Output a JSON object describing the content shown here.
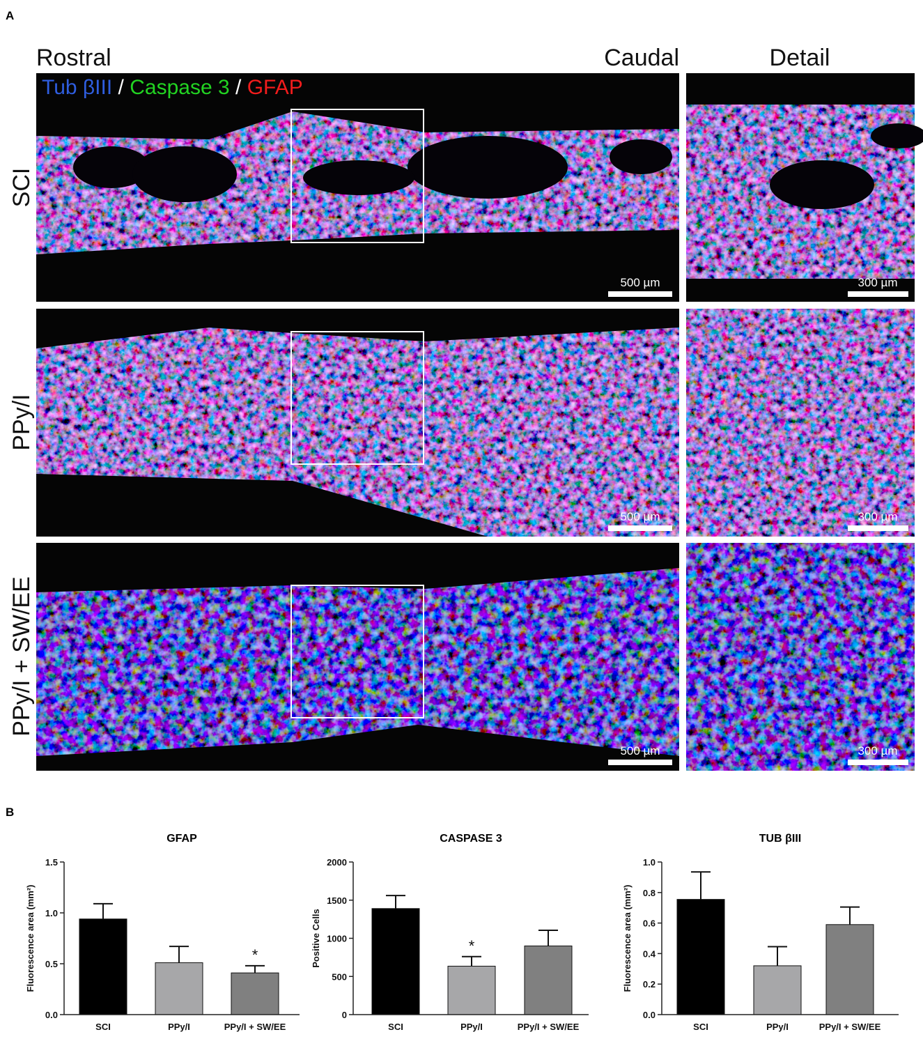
{
  "panel_a": {
    "label": "A",
    "columns": {
      "rostral": "Rostral",
      "caudal": "Caudal",
      "detail": "Detail"
    },
    "legend": [
      "Tub βIII",
      "/",
      "Caspase 3",
      "/",
      "GFAP"
    ],
    "rows": [
      {
        "label": "SCI",
        "scale_main": "500 µm",
        "scale_detail": "300 µm"
      },
      {
        "label": "PPy/I",
        "scale_main": "500 µm",
        "scale_detail": "300 µm"
      },
      {
        "label": "PPy/I + SW/EE",
        "scale_main": "500 µm",
        "scale_detail": "300 µm"
      }
    ]
  },
  "panel_b": {
    "label": "B"
  },
  "chart_data": [
    {
      "type": "bar",
      "title": "GFAP",
      "y_label": "Fluorescence area (mm²)",
      "categories": [
        "SCI",
        "PPy/I",
        "PPy/I + SW/EE"
      ],
      "values": [
        0.94,
        0.51,
        0.41
      ],
      "errors": [
        0.15,
        0.16,
        0.07
      ],
      "annotations": [
        null,
        null,
        "*"
      ],
      "colors": [
        "#000000",
        "#a7a7a9",
        "#808080"
      ],
      "ylim": [
        0,
        1.5
      ],
      "yticks": [
        {
          "value": 0,
          "label": "0.0"
        },
        0.5,
        {
          "value": 1,
          "label": "1.0"
        },
        1.5
      ]
    },
    {
      "type": "bar",
      "title": "CASPASE 3",
      "y_label": "Positive Cells",
      "categories": [
        "SCI",
        "PPy/I",
        "PPy/I + SW/EE"
      ],
      "values": [
        1390,
        635,
        900
      ],
      "errors": [
        170,
        125,
        205
      ],
      "annotations": [
        null,
        "*",
        null
      ],
      "colors": [
        "#000000",
        "#a7a7a9",
        "#808080"
      ],
      "ylim": [
        0,
        2000
      ],
      "yticks": [
        0,
        500,
        1000,
        1500,
        2000
      ]
    },
    {
      "type": "bar",
      "title": "TUB βIII",
      "y_label": "Fluorescence area (mm²)",
      "categories": [
        "SCI",
        "PPy/I",
        "PPy/I + SW/EE"
      ],
      "values": [
        0.755,
        0.32,
        0.59
      ],
      "errors": [
        0.18,
        0.125,
        0.115
      ],
      "annotations": [
        null,
        null,
        null
      ],
      "colors": [
        "#000000",
        "#a7a7a9",
        "#808080"
      ],
      "ylim": [
        0,
        1
      ],
      "yticks": [
        {
          "value": 0,
          "label": "0.0"
        },
        0.2,
        0.4,
        0.6,
        0.8,
        {
          "value": 1,
          "label": "1.0"
        }
      ]
    }
  ]
}
